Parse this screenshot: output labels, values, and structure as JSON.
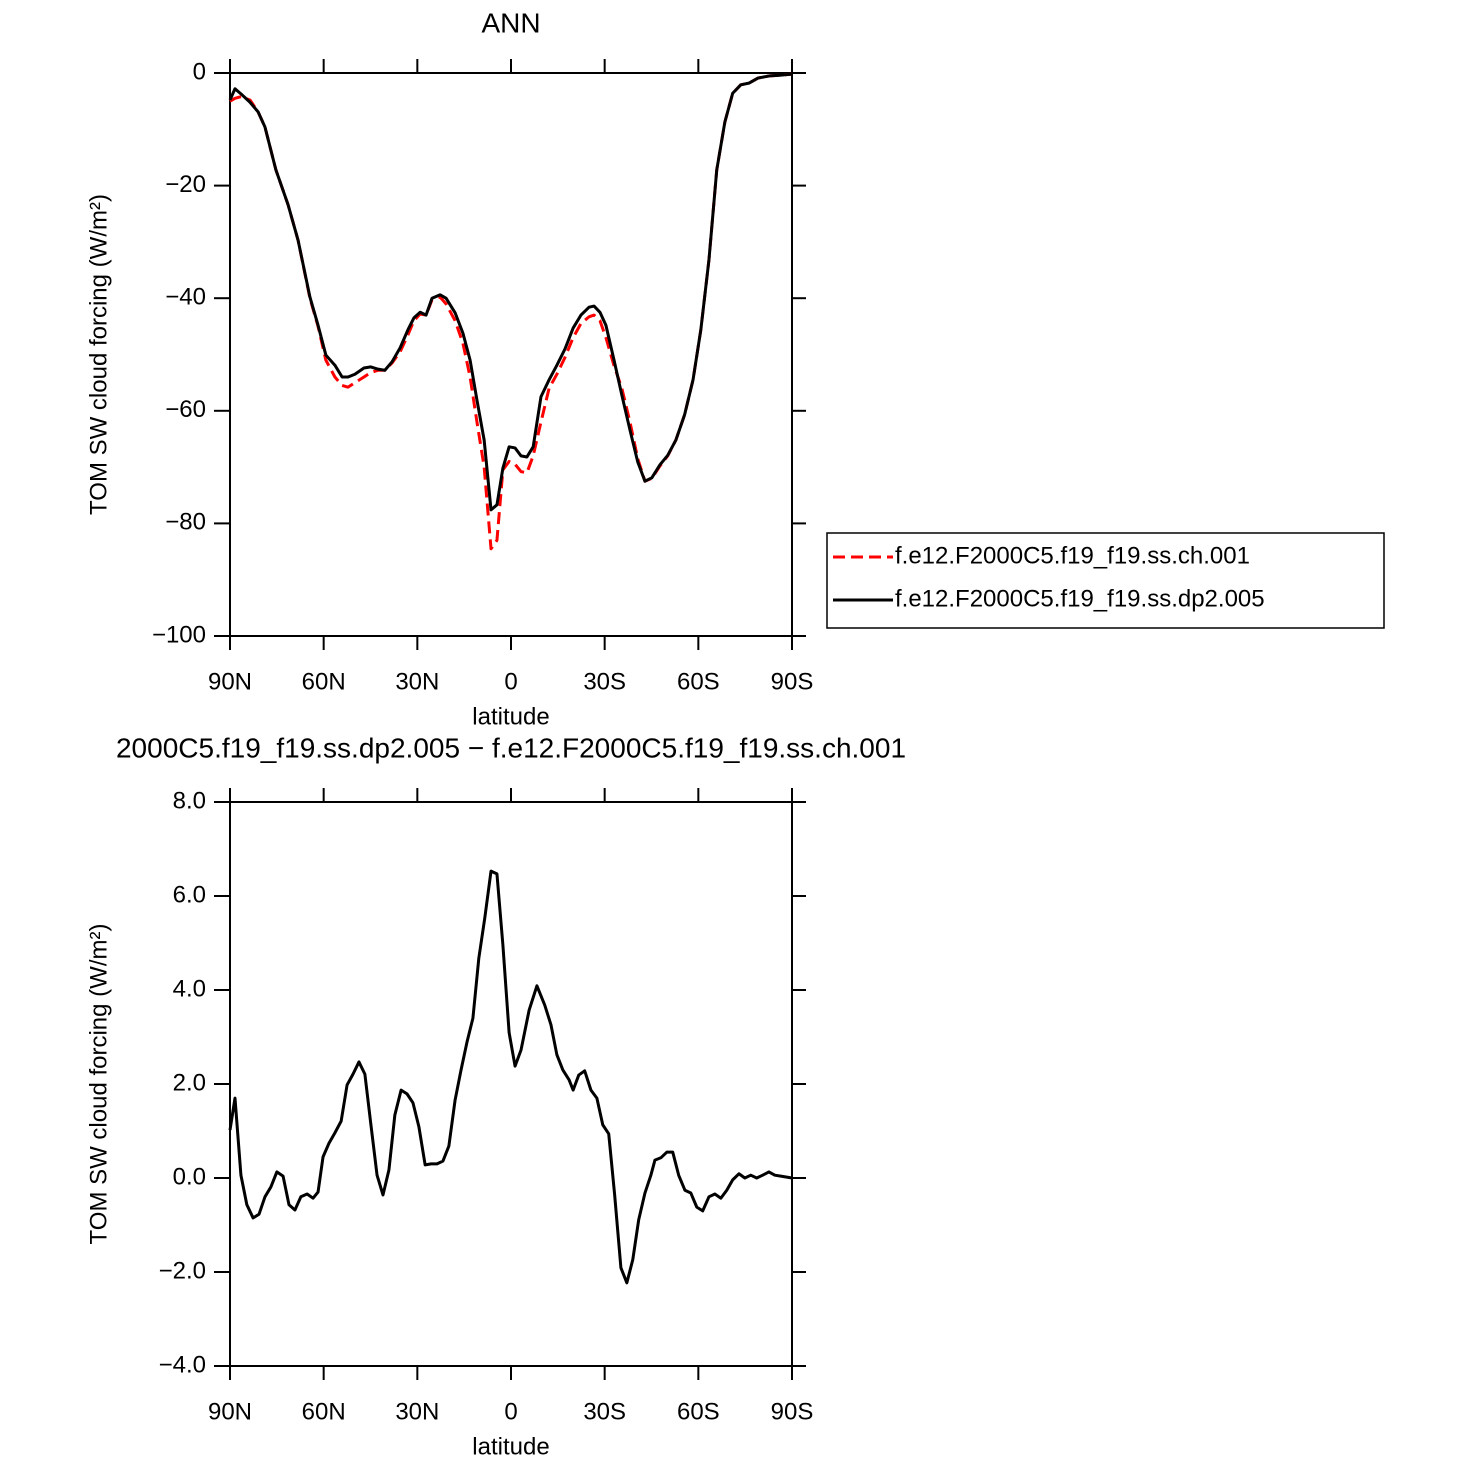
{
  "chart_data": [
    {
      "type": "line",
      "title": "ANN",
      "x_label": "latitude",
      "y_label": "TOM SW cloud forcing (W/m²)",
      "x": [
        90,
        88.4,
        86.5,
        83.6,
        81,
        78.8,
        75.3,
        71.4,
        68.2,
        64.4,
        61.8,
        59.3,
        56.4,
        54.1,
        52.2,
        50,
        47.1,
        44.9,
        42.6,
        40.4,
        38.1,
        35.5,
        33,
        31.1,
        29.1,
        27.2,
        25.3,
        22.7,
        20.8,
        17.9,
        15.4,
        13.1,
        10.9,
        8.6,
        6.4,
        4.5,
        2.6,
        0.6,
        -1.3,
        -3.2,
        -5.1,
        -7.1,
        -9.6,
        -12.2,
        -14.7,
        -17.3,
        -19.9,
        -22.4,
        -25,
        -26.6,
        -28.5,
        -30.4,
        -33,
        -35.5,
        -38.1,
        -40.6,
        -42.9,
        -45.1,
        -47.7,
        -50.2,
        -52.8,
        -55.6,
        -58.3,
        -60.8,
        -63.4,
        -65.9,
        -68.5,
        -71,
        -73.6,
        -76.2,
        -79.1,
        -82.9,
        -86.1,
        -90
      ],
      "series": [
        {
          "name": "f.e12.F2000C5.f19_f19.ss.ch.001",
          "color": "#ff0000",
          "dash": "dashed",
          "values": [
            -5,
            -4.5,
            -4.2,
            -4.8,
            -6.9,
            -9.6,
            -17.2,
            -23.4,
            -29.7,
            -40,
            -45,
            -51,
            -54,
            -55.5,
            -55.8,
            -55,
            -54,
            -53.2,
            -52.8,
            -52.8,
            -51.5,
            -49.5,
            -46.5,
            -44,
            -42.8,
            -43,
            -40.3,
            -39.8,
            -41,
            -44,
            -48,
            -54,
            -62,
            -70,
            -84.5,
            -83,
            -70.5,
            -69,
            -69.5,
            -70.8,
            -71,
            -68,
            -62,
            -56,
            -53.5,
            -50.5,
            -47,
            -44.5,
            -43.3,
            -43,
            -44,
            -47,
            -52,
            -56,
            -62,
            -68.5,
            -72.5,
            -72,
            -69.8,
            -68,
            -65.2,
            -60.7,
            -54.5,
            -45.6,
            -33.2,
            -17.2,
            -8.7,
            -3.6,
            -2.1,
            -1.8,
            -0.9,
            -0.5,
            -0.4,
            -0.2
          ]
        },
        {
          "name": "f.e12.F2000C5.f19_f19.ss.dp2.005",
          "color": "#000000",
          "dash": "solid",
          "values": [
            -4.8,
            -2.8,
            -3.7,
            -5.2,
            -6.9,
            -9.6,
            -17.2,
            -23.4,
            -29.7,
            -39.8,
            -44.8,
            -50.1,
            -51.9,
            -54,
            -54,
            -53.5,
            -52.4,
            -52.2,
            -52.6,
            -52.8,
            -51.3,
            -48.8,
            -45.6,
            -43.5,
            -42.5,
            -43,
            -40,
            -39.4,
            -40,
            -42.6,
            -46.2,
            -51,
            -58.1,
            -65.2,
            -77.6,
            -76.7,
            -70.2,
            -66.4,
            -66.6,
            -68,
            -68.2,
            -66.4,
            -57.5,
            -54.5,
            -51.9,
            -49,
            -45.3,
            -43,
            -41.6,
            -41.4,
            -42.5,
            -44.8,
            -51,
            -57.2,
            -63.4,
            -69.1,
            -72.5,
            -71.9,
            -69.6,
            -67.9,
            -65.2,
            -60.7,
            -54.5,
            -45.6,
            -33.2,
            -17.2,
            -8.7,
            -3.6,
            -2.1,
            -1.8,
            -0.9,
            -0.5,
            -0.4,
            -0.2
          ]
        }
      ],
      "xlim": [
        90,
        -90
      ],
      "xticks": [
        {
          "value": 90,
          "label": "90N"
        },
        {
          "value": 60,
          "label": "60N"
        },
        {
          "value": 30,
          "label": "30N"
        },
        0,
        {
          "value": -30,
          "label": "30S"
        },
        {
          "value": -60,
          "label": "60S"
        },
        {
          "value": -90,
          "label": "90S"
        }
      ],
      "ylim": [
        -100,
        0
      ],
      "yticks": [
        {
          "value": 0,
          "label": "0"
        },
        {
          "value": -20,
          "label": "−20"
        },
        {
          "value": -40,
          "label": "−40"
        },
        {
          "value": -60,
          "label": "−60"
        },
        {
          "value": -80,
          "label": "−80"
        },
        {
          "value": -100,
          "label": "−100"
        }
      ],
      "grid": false,
      "legend": "right"
    },
    {
      "type": "line",
      "title": "2000C5.f19_f19.ss.dp2.005 − f.e12.F2000C5.f19_f19.ss.ch.001",
      "x_label": "latitude",
      "y_label": "TOM SW cloud forcing (W/m²)",
      "x": [
        90,
        88.4,
        86.5,
        84.6,
        82.6,
        80.7,
        78.8,
        76.9,
        75,
        73,
        71.1,
        69.2,
        67.3,
        65.3,
        63.4,
        61.8,
        60.2,
        58.3,
        56.4,
        54.4,
        52.5,
        50.6,
        48.7,
        46.8,
        44.9,
        42.9,
        41,
        39.1,
        37.2,
        35.2,
        33.3,
        31.4,
        29.5,
        27.5,
        25.6,
        23.7,
        21.8,
        19.9,
        17.9,
        16,
        14.1,
        12.2,
        10.3,
        8.4,
        6.4,
        4.5,
        2.6,
        0.6,
        -1.3,
        -3.2,
        -5.8,
        -8.3,
        -10.8,
        -12.8,
        -14.7,
        -16.6,
        -18.6,
        -19.9,
        -21.7,
        -23.6,
        -25.6,
        -27.5,
        -29.4,
        -31.3,
        -33.2,
        -35.2,
        -37.1,
        -39,
        -40.9,
        -42.9,
        -44.8,
        -46.1,
        -48,
        -49.9,
        -51.8,
        -53.7,
        -55.7,
        -57.6,
        -59.5,
        -61.4,
        -63.4,
        -65.3,
        -67.2,
        -69.1,
        -71,
        -73,
        -74.9,
        -76.8,
        -78.7,
        -80.6,
        -82.6,
        -84.5,
        -86.4,
        -90
      ],
      "values": [
        1.02,
        1.7,
        0.06,
        -0.57,
        -0.85,
        -0.77,
        -0.4,
        -0.19,
        0.13,
        0.04,
        -0.57,
        -0.68,
        -0.4,
        -0.34,
        -0.43,
        -0.3,
        0.45,
        0.74,
        0.96,
        1.21,
        1.98,
        2.21,
        2.47,
        2.21,
        1.15,
        0.06,
        -0.36,
        0.17,
        1.34,
        1.87,
        1.79,
        1.6,
        1.09,
        0.28,
        0.3,
        0.3,
        0.36,
        0.68,
        1.66,
        2.3,
        2.89,
        3.4,
        4.68,
        5.53,
        6.53,
        6.47,
        4.96,
        3.09,
        2.38,
        2.72,
        3.57,
        4.09,
        3.68,
        3.26,
        2.62,
        2.3,
        2.09,
        1.87,
        2.19,
        2.28,
        1.87,
        1.7,
        1.13,
        0.94,
        -0.36,
        -1.91,
        -2.23,
        -1.74,
        -0.89,
        -0.32,
        0.06,
        0.38,
        0.43,
        0.55,
        0.55,
        0.06,
        -0.26,
        -0.32,
        -0.62,
        -0.7,
        -0.4,
        -0.34,
        -0.43,
        -0.26,
        -0.04,
        0.09,
        0,
        0.06,
        0,
        0.06,
        0.13,
        0.06,
        0.04,
        0
      ],
      "color": "#000000",
      "xlim": [
        90,
        -90
      ],
      "xticks": [
        {
          "value": 90,
          "label": "90N"
        },
        {
          "value": 60,
          "label": "60N"
        },
        {
          "value": 30,
          "label": "30N"
        },
        0,
        {
          "value": -30,
          "label": "30S"
        },
        {
          "value": -60,
          "label": "60S"
        },
        {
          "value": -90,
          "label": "90S"
        }
      ],
      "ylim": [
        -4,
        8
      ],
      "yticks": [
        {
          "value": 8,
          "label": "8.0"
        },
        {
          "value": 6,
          "label": "6.0"
        },
        {
          "value": 4,
          "label": "4.0"
        },
        {
          "value": 2,
          "label": "2.0"
        },
        {
          "value": 0,
          "label": "0.0"
        },
        {
          "value": -2,
          "label": "−2.0"
        },
        {
          "value": -4,
          "label": "−4.0"
        }
      ],
      "grid": false
    }
  ]
}
